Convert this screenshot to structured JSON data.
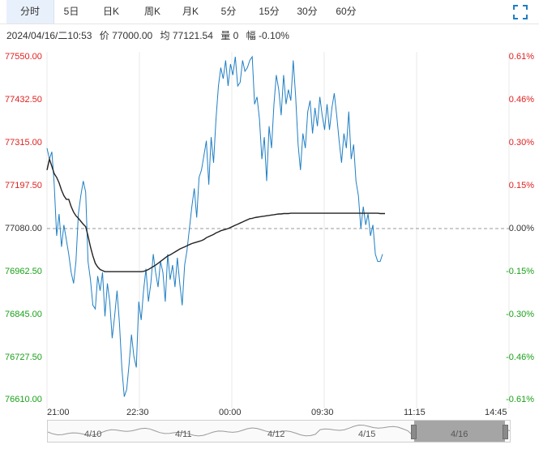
{
  "tabs": [
    {
      "label": "分时",
      "active": true
    },
    {
      "label": "5日",
      "active": false
    },
    {
      "label": "日K",
      "active": false
    },
    {
      "label": "周K",
      "active": false
    },
    {
      "label": "月K",
      "active": false
    },
    {
      "label": "5分",
      "active": false
    },
    {
      "label": "15分",
      "active": false
    },
    {
      "label": "30分",
      "active": false
    },
    {
      "label": "60分",
      "active": false
    }
  ],
  "expand_icon": "fullscreen-icon",
  "info": {
    "datetime": "2024/04/16/二10:53",
    "price": "价 77000.00",
    "avg": "均 77121.54",
    "volume": "量 0",
    "change": "幅 -0.10%"
  },
  "y_left_labels": [
    "77550.00",
    "77432.50",
    "77315.00",
    "77197.50",
    "77080.00",
    "76962.50",
    "76845.00",
    "76727.50",
    "76610.00"
  ],
  "y_right_labels": [
    "0.61%",
    "0.46%",
    "0.30%",
    "0.15%",
    "0.00%",
    "-0.15%",
    "-0.30%",
    "-0.46%",
    "-0.61%"
  ],
  "x_labels": [
    "21:00",
    "22:30",
    "00:00",
    "09:30",
    "11:15",
    "14:45"
  ],
  "navigator_labels": [
    "4/10",
    "4/11",
    "4/12",
    "4/15",
    "4/16"
  ],
  "colors": {
    "up": "#e02020",
    "down": "#1aa11a",
    "neutral": "#333333",
    "price_line": "#1f7fc4",
    "avg_line": "#222222",
    "grid": "#e8e8e8",
    "base_line": "#999999"
  },
  "chart_data": {
    "type": "line",
    "ylim": [
      76610,
      77550
    ],
    "base_price": 77080,
    "series": [
      {
        "role": "price",
        "values": [
          77300,
          77270,
          77290,
          77200,
          77060,
          77120,
          77030,
          77090,
          77050,
          77010,
          76960,
          76930,
          76990,
          77120,
          77170,
          77210,
          77180,
          76990,
          76940,
          76870,
          76860,
          76950,
          76910,
          76960,
          76840,
          76930,
          76880,
          76780,
          76840,
          76910,
          76820,
          76700,
          76620,
          76640,
          76710,
          76790,
          76730,
          76700,
          76880,
          76830,
          76910,
          76970,
          76880,
          76930,
          77010,
          76960,
          76920,
          76990,
          76960,
          76880,
          77010,
          76940,
          76980,
          76920,
          77000,
          76930,
          76870,
          76980,
          77020,
          77080,
          77140,
          77190,
          77110,
          77220,
          77240,
          77280,
          77320,
          77200,
          77330,
          77260,
          77380,
          77470,
          77520,
          77490,
          77540,
          77470,
          77530,
          77500,
          77550,
          77470,
          77480,
          77540,
          77510,
          77520,
          77540,
          77550,
          77420,
          77440,
          77380,
          77270,
          77330,
          77210,
          77360,
          77300,
          77420,
          77500,
          77460,
          77390,
          77500,
          77420,
          77460,
          77430,
          77540,
          77440,
          77310,
          77240,
          77340,
          77300,
          77400,
          77430,
          77340,
          77410,
          77360,
          77440,
          77390,
          77350,
          77420,
          77350,
          77410,
          77450,
          77390,
          77320,
          77260,
          77340,
          77300,
          77400,
          77270,
          77310,
          77210,
          77170,
          77080,
          77140,
          77090,
          77120,
          77060,
          77090,
          77010,
          76990,
          76990,
          77010
        ],
        "color_key": "price_line"
      },
      {
        "role": "average",
        "values": [
          77240,
          77270,
          77250,
          77230,
          77220,
          77205,
          77185,
          77170,
          77160,
          77160,
          77140,
          77125,
          77115,
          77108,
          77100,
          77092,
          77085,
          77060,
          77030,
          77005,
          76985,
          76975,
          76968,
          76965,
          76962,
          76962,
          76962,
          76962,
          76962,
          76962,
          76962,
          76962,
          76962,
          76962,
          76962,
          76962,
          76962,
          76962,
          76962,
          76962,
          76963,
          76965,
          76968,
          76972,
          76976,
          76980,
          76985,
          76990,
          76995,
          77000,
          77005,
          77008,
          77012,
          77016,
          77020,
          77024,
          77027,
          77030,
          77033,
          77036,
          77039,
          77041,
          77043,
          77045,
          77047,
          77050,
          77055,
          77058,
          77061,
          77064,
          77068,
          77071,
          77074,
          77076,
          77078,
          77080,
          77083,
          77086,
          77089,
          77092,
          77095,
          77098,
          77101,
          77104,
          77107,
          77108,
          77110,
          77111,
          77112,
          77113,
          77114,
          77115,
          77116,
          77117,
          77118,
          77119,
          77120,
          77120,
          77121,
          77121,
          77121,
          77122,
          77122,
          77122,
          77122,
          77122,
          77122,
          77122,
          77122,
          77122,
          77122,
          77122,
          77122,
          77122,
          77122,
          77122,
          77122,
          77122,
          77122,
          77122,
          77122,
          77122,
          77122,
          77122,
          77122,
          77122,
          77122,
          77122,
          77122,
          77122,
          77122,
          77122,
          77122,
          77122,
          77122,
          77122,
          77122,
          77122,
          77121,
          77121,
          77121
        ],
        "color_key": "avg_line"
      }
    ],
    "x_tick_labels": [
      "21:00",
      "22:30",
      "00:00",
      "09:30",
      "11:15",
      "14:45"
    ]
  }
}
